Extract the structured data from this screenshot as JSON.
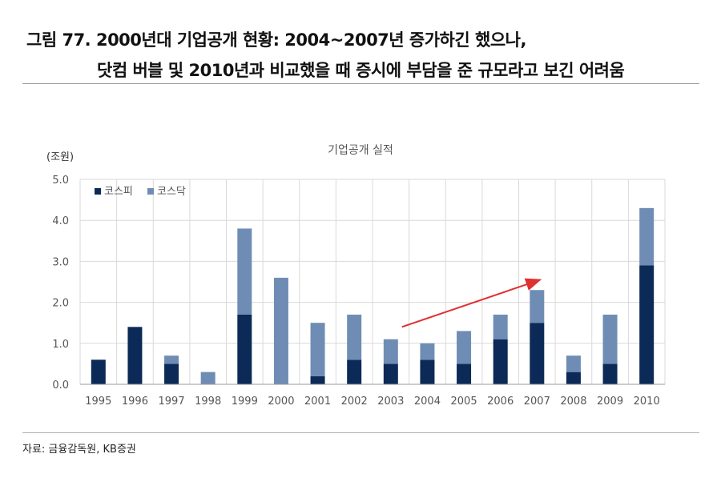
{
  "page": {
    "title_line1": "그림 77. 2000년대 기업공개 현황: 2004~2007년 증가하긴 했으나,",
    "title_line2": "닷컴 버블 및 2010년과 비교했을 때 증시에 부담을 준 규모라고 보긴 어려움",
    "source": "자료: 금융감독원, KB증권"
  },
  "chart_data": {
    "type": "bar",
    "stacked": true,
    "title": "기업공개 실적",
    "unit_label": "(조원)",
    "xlabel": "",
    "ylabel": "",
    "ylim": [
      0,
      5
    ],
    "yticks": [
      "0.0",
      "1.0",
      "2.0",
      "3.0",
      "4.0",
      "5.0"
    ],
    "grid": true,
    "legend_position": "top-left",
    "categories": [
      "1995",
      "1996",
      "1997",
      "1998",
      "1999",
      "2000",
      "2001",
      "2002",
      "2003",
      "2004",
      "2005",
      "2006",
      "2007",
      "2008",
      "2009",
      "2010"
    ],
    "series": [
      {
        "name": "코스피",
        "color": "#0b2a57",
        "values": [
          0.6,
          1.4,
          0.5,
          0.0,
          1.7,
          0.0,
          0.2,
          0.6,
          0.5,
          0.6,
          0.5,
          1.1,
          1.5,
          0.3,
          0.5,
          2.9
        ]
      },
      {
        "name": "코스닥",
        "color": "#6f8db4",
        "values": [
          0.0,
          0.0,
          0.2,
          0.3,
          2.1,
          2.6,
          1.3,
          1.1,
          0.6,
          0.4,
          0.8,
          0.6,
          0.8,
          0.4,
          1.2,
          1.4
        ]
      }
    ],
    "annotation": {
      "type": "arrow",
      "color": "#e03030",
      "from": {
        "x": "2003",
        "y": 1.4
      },
      "to": {
        "x": "2007",
        "y": 2.55
      }
    }
  }
}
